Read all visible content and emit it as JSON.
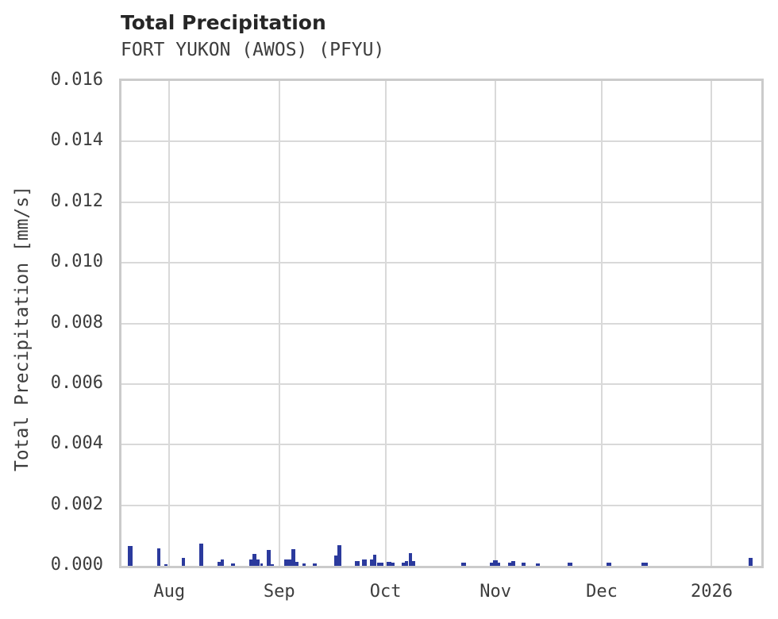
{
  "header": {
    "title": "Total Precipitation",
    "subtitle": "FORT YUKON (AWOS) (PFYU)"
  },
  "colors": {
    "bar": "#2b3a9d",
    "grid": "#d9d9d9",
    "spine": "#cbcbcb",
    "title_text": "#262626",
    "tick_text": "#3d3d3d"
  },
  "chart_data": {
    "type": "bar",
    "title": "Total Precipitation",
    "subtitle": "FORT YUKON (AWOS) (PFYU)",
    "xlabel": "",
    "ylabel": "Total Precipitation [mm/s]",
    "ylim": [
      0,
      0.016
    ],
    "y_tick_step": 0.002,
    "y_tick_decimals": 3,
    "grid": true,
    "legend_position": "none",
    "x_range": [
      "2025-07-18T12:00:00Z",
      "2026-01-15T00:00:00Z"
    ],
    "x_ticks": [
      {
        "label": "Aug",
        "date": "2025-08-01"
      },
      {
        "label": "Sep",
        "date": "2025-09-01"
      },
      {
        "label": "Oct",
        "date": "2025-10-01"
      },
      {
        "label": "Nov",
        "date": "2025-11-01"
      },
      {
        "label": "Dec",
        "date": "2025-12-01"
      },
      {
        "label": "2026",
        "date": "2026-01-01"
      }
    ],
    "series_name": "Total Precipitation [mm/s]",
    "points": [
      {
        "date": "2025-07-21",
        "value": 0.00065,
        "w_days": 1.2
      },
      {
        "date": "2025-07-29",
        "value": 0.00058,
        "w_days": 1.0
      },
      {
        "date": "2025-07-31",
        "value": 5e-05,
        "w_days": 1.0
      },
      {
        "date": "2025-08-05",
        "value": 0.00026,
        "w_days": 1.0
      },
      {
        "date": "2025-08-10",
        "value": 0.00073,
        "w_days": 1.1
      },
      {
        "date": "2025-08-15",
        "value": 0.00013,
        "w_days": 1.0
      },
      {
        "date": "2025-08-16",
        "value": 0.00021,
        "w_days": 1.0
      },
      {
        "date": "2025-08-19",
        "value": 8e-05,
        "w_days": 1.0
      },
      {
        "date": "2025-08-24",
        "value": 0.00021,
        "w_days": 1.0
      },
      {
        "date": "2025-08-25",
        "value": 0.00039,
        "w_days": 1.0
      },
      {
        "date": "2025-08-26",
        "value": 0.00021,
        "w_days": 1.0
      },
      {
        "date": "2025-08-27",
        "value": 8e-05,
        "w_days": 0.8
      },
      {
        "date": "2025-08-29",
        "value": 0.00052,
        "w_days": 1.1
      },
      {
        "date": "2025-08-30",
        "value": 5e-05,
        "w_days": 0.8
      },
      {
        "date": "2025-09-03",
        "value": 0.00021,
        "w_days": 1.0
      },
      {
        "date": "2025-09-04",
        "value": 0.0002,
        "w_days": 0.8
      },
      {
        "date": "2025-09-05",
        "value": 0.00055,
        "w_days": 1.0
      },
      {
        "date": "2025-09-06",
        "value": 0.00013,
        "w_days": 0.8
      },
      {
        "date": "2025-09-08",
        "value": 8e-05,
        "w_days": 1.0
      },
      {
        "date": "2025-09-11",
        "value": 8e-05,
        "w_days": 1.0
      },
      {
        "date": "2025-09-17",
        "value": 0.00034,
        "w_days": 0.9
      },
      {
        "date": "2025-09-18",
        "value": 0.00068,
        "w_days": 1.1
      },
      {
        "date": "2025-09-23",
        "value": 0.00016,
        "w_days": 1.2
      },
      {
        "date": "2025-09-25",
        "value": 0.00021,
        "w_days": 1.2
      },
      {
        "date": "2025-09-27",
        "value": 0.0002,
        "w_days": 0.9
      },
      {
        "date": "2025-09-28",
        "value": 0.00037,
        "w_days": 1.0
      },
      {
        "date": "2025-09-29",
        "value": 0.0001,
        "w_days": 0.9
      },
      {
        "date": "2025-09-30",
        "value": 0.0001,
        "w_days": 1.0
      },
      {
        "date": "2025-10-02",
        "value": 0.00013,
        "w_days": 1.2
      },
      {
        "date": "2025-10-03",
        "value": 0.0001,
        "w_days": 0.9
      },
      {
        "date": "2025-10-06",
        "value": 0.0001,
        "w_days": 1.0
      },
      {
        "date": "2025-10-07",
        "value": 0.00016,
        "w_days": 0.9
      },
      {
        "date": "2025-10-08",
        "value": 0.00042,
        "w_days": 1.0
      },
      {
        "date": "2025-10-09",
        "value": 0.00016,
        "w_days": 0.9
      },
      {
        "date": "2025-10-23",
        "value": 0.0001,
        "w_days": 1.3
      },
      {
        "date": "2025-10-31",
        "value": 0.0001,
        "w_days": 1.0
      },
      {
        "date": "2025-11-01",
        "value": 0.00018,
        "w_days": 1.5
      },
      {
        "date": "2025-11-02",
        "value": 0.0001,
        "w_days": 0.8
      },
      {
        "date": "2025-11-05",
        "value": 0.0001,
        "w_days": 1.0
      },
      {
        "date": "2025-11-06",
        "value": 0.00016,
        "w_days": 1.0
      },
      {
        "date": "2025-11-09",
        "value": 0.0001,
        "w_days": 1.2
      },
      {
        "date": "2025-11-13",
        "value": 8e-05,
        "w_days": 1.2
      },
      {
        "date": "2025-11-22",
        "value": 0.0001,
        "w_days": 1.4
      },
      {
        "date": "2025-12-03",
        "value": 0.0001,
        "w_days": 1.5
      },
      {
        "date": "2025-12-13",
        "value": 0.0001,
        "w_days": 1.8
      },
      {
        "date": "2026-01-12",
        "value": 0.00026,
        "w_days": 1.2
      }
    ]
  }
}
